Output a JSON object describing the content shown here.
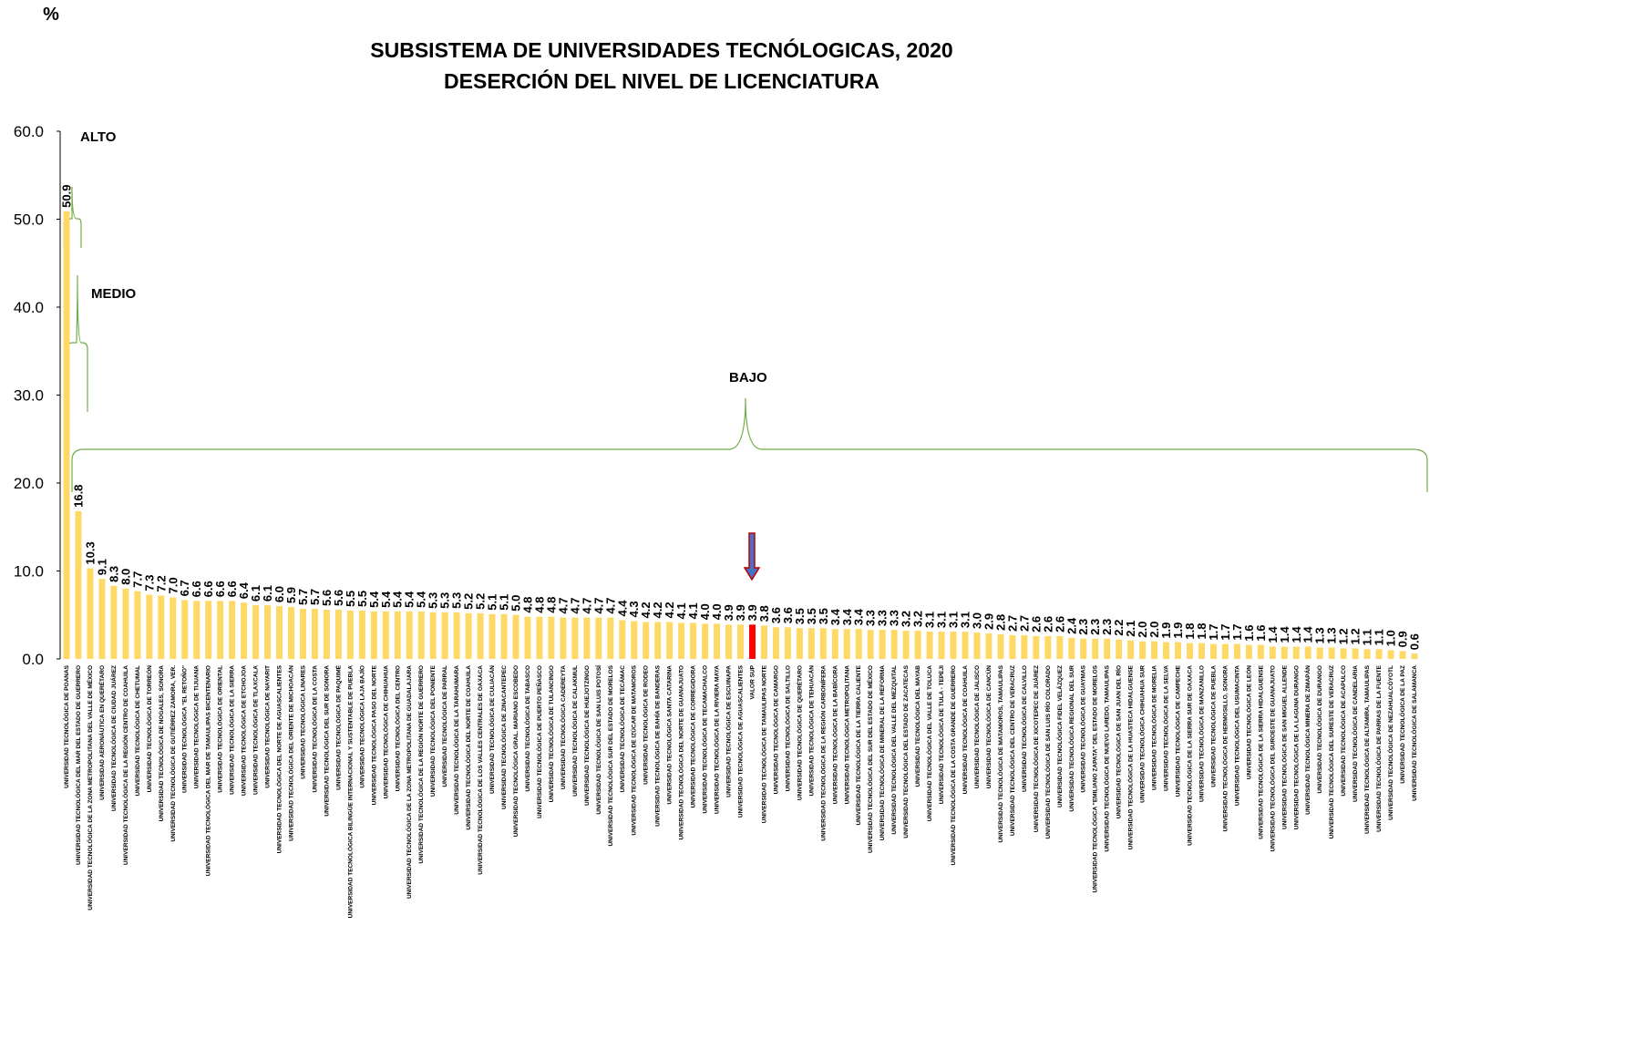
{
  "chart_data": {
    "type": "bar",
    "title": [
      "SUBSISTEMA DE UNIVERSIDADES TECNÓLOGICAS, 2020",
      "DESERCIÓN DEL NIVEL DE LICENCIATURA"
    ],
    "y_label": "%",
    "annotations": [
      "ALTO",
      "MEDIO",
      "BAJO"
    ],
    "color": "#ffd966",
    "highlight": {
      "index": 58,
      "color": "#ff0000"
    },
    "ylim": [
      0,
      60
    ],
    "yticks": [
      {
        "value": 0,
        "label": "0.0"
      },
      {
        "value": 10,
        "label": "10.0"
      },
      {
        "value": 20,
        "label": "20.0"
      },
      {
        "value": 30,
        "label": "30.0"
      },
      {
        "value": 40,
        "label": "40.0"
      },
      {
        "value": 50,
        "label": "50.0"
      },
      {
        "value": 60,
        "label": "60.0"
      }
    ],
    "categories": [
      "UNIVERSIDAD TECNOLÓGICA DE POANAS",
      "UNIVERSIDAD TECNOLÓGICA DEL MAR DEL ESTADO DE GUERRERO",
      "UNIVERSIDAD TECNOLÓGICA DE LA ZONA METROPOLITANA DEL VALLE DE MÉXICO",
      "UNIVERSIDAD AERONÁUTICA EN QUERÉTARO",
      "UNIVERSIDAD TECNOLÓGICA DE CIUDAD JUÁREZ",
      "UNIVERSIDAD TECNOLÓGICA DE LA REGIÓN CENTRO DE COAHUILA",
      "UNIVERSIDAD TECNOLÓGICA DE CHETUMAL",
      "UNIVERSIDAD TECNOLÓGICA DE TORREÓN",
      "UNIVERSIDAD TECNOLÓGICA DE NOGALES, SONORA",
      "UNIVERSIDAD TECNOLÓGICA DE GUTIÉRREZ ZAMORA, VER.",
      "UNIVERSIDAD TECNOLÓGICA \"EL RETOÑO\"",
      "UNIVERSIDAD TECNOLÓGICA DE TIJUANA",
      "UNIVERSIDAD TECNOLÓGICA DEL MAR DE TAMAULIPAS BICENTENARIO",
      "UNIVERSIDAD TECNOLÓGICA DE ORIENTAL",
      "UNIVERSIDAD TECNOLÓGICA DE LA SIERRA",
      "UNIVERSIDAD TECNOLÓGICA DE ETCHOJOA",
      "UNIVERSIDAD TECNOLÓGICA DE TLAXCALA",
      "UNIVERSIDAD TECNOLÓGICA DE NAYARIT",
      "UNIVERSIDAD TECNOLÓGICA DEL NORTE DE AGUASCALIENTES",
      "UNIVERSIDAD TECNOLÓGICA DEL ORIENTE DE MICHOACÁN",
      "UNIVERSIDAD TECNOLÓGICA LINARES",
      "UNIVERSIDAD TECNOLÓGICA DE LA COSTA",
      "UNIVERSIDAD TECNOLÓGICA DEL SUR DE SONORA",
      "UNIVERSIDAD TECNOLÓGICA DE PAQUIMÉ",
      "UNIVERSIDAD TECNOLÓGICA BILINGÜE INTERNACIONAL Y SUSTENTABLE DE PUEBLA",
      "UNIVERSIDAD TECNOLÓGICA LAJA BAJÍO",
      "UNIVERSIDAD TECNOLÓGICA PASO DEL NORTE",
      "UNIVERSIDAD TECNOLÓGICA DE CHIHUAHUA",
      "UNIVERSIDAD TECNOLÓGICA DEL CENTRO",
      "UNIVERSIDAD TECNOLÓGICA DE LA ZONA METROPOLITANA DE GUADALAJARA",
      "UNIVERSIDAD TECNOLÓGICA DE LA REGIÓN NORTE DE GUERRERO",
      "UNIVERSIDAD TECNOLÓGICA DEL PONIENTE",
      "UNIVERSIDAD TECNOLÓGICA DE PARRAL",
      "UNIVERSIDAD TECNOLÓGICA DE LA TARAHUMARA",
      "UNIVERSIDAD TECNOLÓGICA DEL NORTE DE COAHUILA",
      "UNIVERSIDAD TECNOLÓGICA DE LOS VALLES CENTRALES DE OAXACA",
      "UNIVERSIDAD TECNOLÓGICA DE CULIACÁN",
      "UNIVERSIDAD TECNOLÓGICA DE ZINACANTEPEC",
      "UNIVERSIDAD TECNOLÓGICA GRAL. MARIANO ESCOBEDO",
      "UNIVERSIDAD TECNOLÓGICA DE TABASCO",
      "UNIVERSIDAD TECNOLÓGICA DE PUERTO PEÑASCO",
      "UNIVERSIDAD TECNOLÓGICA DE TULANCINGO",
      "UNIVERSIDAD TECNOLÓGICA CADEREYTA",
      "UNIVERSIDAD TECNOLÓGICA DE CALAKMUL",
      "UNIVERSIDAD TECNOLÓGICA DE HUEJOTZINGO",
      "UNIVERSIDAD TECNOLÓGICA DE SAN LUIS POTOSÍ",
      "UNIVERSIDAD TECNOLÓGICA SUR DEL ESTADO DE MORELOS",
      "UNIVERSIDAD TECNOLÓGICA DE TECÁMAC",
      "UNIVERSIDAD TECNOLÓGICA DE IZÚCAR DE MATAMOROS",
      "UNIVERSIDAD TECNOLÓGICA DE RODEO",
      "UNIVERSIDAD TECNOLÓGICA DE BAHÍA DE BANDERAS",
      "UNIVERSIDAD TECNOLÓGICA SANTA CATARINA",
      "UNIVERSIDAD TECNOLÓGICA DEL NORTE DE GUANAJUATO",
      "UNIVERSIDAD TECNOLÓGICA DE CORREGIDORA",
      "UNIVERSIDAD TECNOLÓGICA DE TECAMACHALCO",
      "UNIVERSIDAD TECNOLÓGICA DE LA RIVIERA MAYA",
      "UNIVERSIDAD TECNOLÓGICA DE ESCUINAPA",
      "UNIVERSIDAD TECNOLÓGICA DE AGUASCALIENTES",
      "VALOR SUP",
      "UNIVERSIDAD TECNOLÓGICA DE TAMAULIPAS NORTE",
      "UNIVERSIDAD TECNOLÓGICA DE CAMARGO",
      "UNIVERSIDAD TECNOLÓGICA DE SALTILLO",
      "UNIVERSIDAD TECNOLÓGICA DE QUERÉTARO",
      "UNIVERSIDAD TECNOLÓGICA DE TEHUACÁN",
      "UNIVERSIDAD TECNOLÓGICA DE LA REGIÓN CARBONÍFERA",
      "UNIVERSIDAD TECNOLÓGICA DE LA BABÍCORA",
      "UNIVERSIDAD TECNOLÓGICA METROPOLITANA",
      "UNIVERSIDAD TECNOLÓGICA DE LA TIERRA CALIENTE",
      "UNIVERSIDAD TECNOLÓGICA DEL SUR DEL ESTADO DE MÉXICO",
      "UNIVERSIDAD TECNOLÓGICA DE MINERAL DE LA REFORMA",
      "UNIVERSIDAD TECNOLÓGICA DEL VALLE DEL MEZQUITAL",
      "UNIVERSIDAD TECNOLÓGICA DEL ESTADO DE ZACATECAS",
      "UNIVERSIDAD TECNOLÓGICA DEL MAYAB",
      "UNIVERSIDAD TECNOLÓGICA DEL VALLE DE TOLUCA",
      "UNIVERSIDAD TECNOLÓGICA DE TULA - TEPEJI",
      "UNIVERSIDAD TECNOLÓGICA DE LA COSTA GRANDE DE GUERRERO",
      "UNIVERSIDAD TECNOLÓGICA DE COAHUILA",
      "UNIVERSIDAD TECNOLÓGICA DE JALISCO",
      "UNIVERSIDAD TECNOLÓGICA DE CANCÚN",
      "UNIVERSIDAD TECNOLÓGICA DE MATAMOROS, TAMAULIPAS",
      "UNIVERSIDAD TECNOLÓGICA DEL CENTRO DE VERACRUZ",
      "UNIVERSIDAD TECNOLÓGICA DE CALVILLO",
      "UNIVERSIDAD TECNOLÓGICA DE XICOTEPEC DE JUÁREZ",
      "UNIVERSIDAD TECNOLÓGICA DE SAN LUIS RÍO COLORADO",
      "UNIVERSIDAD TECNOLÓGICA FIDEL VELÁZQUEZ",
      "UNIVERSIDAD TECNOLÓGICA REGIONAL DEL SUR",
      "UNIVERSIDAD TECNOLÓGICA DE GUAYMAS",
      "UNIVERSIDAD TECNOLÓGICA \"EMILIANO ZAPATA\" DEL ESTADO DE MORELOS",
      "UNIVERSIDAD TECNOLÓGICA DE NUEVO LAREDO, TAMAULIPAS",
      "UNIVERSIDAD TECNOLÓGICA DE SAN JUAN DEL RÍO",
      "UNIVERSIDAD TECNOLÓGICA DE LA HUASTECA HIDALGUENSE",
      "UNIVERSIDAD TECNOLÓGICA CHIHUAHUA SUR",
      "UNIVERSIDAD TECNOLÓGICA DE MORELIA",
      "UNIVERSIDAD TECNOLÓGICA DE LA SELVA",
      "UNIVERSIDAD TECNOLÓGICA DE CAMPECHE",
      "UNIVERSIDAD TECNOLÓGICA DE LA SIERRA SUR DE OAXACA",
      "UNIVERSIDAD TECNOLÓGICA DE MANZANILLO",
      "UNIVERSIDAD TECNOLÓGICA DE PUEBLA",
      "UNIVERSIDAD TECNOLÓGICA DE HERMOSILLO, SONORA",
      "UNIVERSIDAD TECNOLÓGICA DEL USUMACINTA",
      "UNIVERSIDAD TECNOLÓGICA DE LEÓN",
      "UNIVERSIDAD TECNOLÓGICA DE LA SIERRA HIDALGUENSE",
      "UNIVERSIDAD TECNOLÓGICA DEL SUROESTE DE GUANAJUATO",
      "UNIVERSIDAD TECNOLÓGICA DE SAN MIGUEL ALLENDE",
      "UNIVERSIDAD TECNOLÓGICA DE LA LAGUNA DURANGO",
      "UNIVERSIDAD TECNOLÓGICA MINERA DE ZIMAPÁN",
      "UNIVERSIDAD TECNOLÓGICA DE DURANGO",
      "UNIVERSIDAD TECNOLÓGICA DEL SURESTE DE VERACRUZ",
      "UNIVERSIDAD TECNOLÓGICA DE ACAPULCO",
      "UNIVERSIDAD TECNOLÓGICA DE CANDELARIA",
      "UNIVERSIDAD TECNOLÓGICA DE ALTAMIRA, TAMAULIPAS",
      "UNIVERSIDAD TECNOLÓGICA DE PARRAS DE LA FUENTE",
      "UNIVERSIDAD TECNOLÓGICA DE NEZAHUALCÓYOTL",
      "UNIVERSIDAD TECNOLÓGICA DE LA PAZ",
      "UNIVERSIDAD TECNOLÓGICA DE SALAMANCA"
    ],
    "values": [
      50.9,
      16.8,
      10.3,
      9.1,
      8.3,
      8.0,
      7.7,
      7.3,
      7.2,
      7.0,
      6.7,
      6.6,
      6.6,
      6.6,
      6.6,
      6.4,
      6.1,
      6.1,
      6.0,
      5.9,
      5.7,
      5.7,
      5.6,
      5.6,
      5.5,
      5.5,
      5.4,
      5.4,
      5.4,
      5.4,
      5.4,
      5.3,
      5.3,
      5.3,
      5.2,
      5.2,
      5.1,
      5.1,
      5.0,
      4.8,
      4.8,
      4.8,
      4.7,
      4.7,
      4.7,
      4.7,
      4.7,
      4.4,
      4.3,
      4.2,
      4.2,
      4.2,
      4.1,
      4.1,
      4.0,
      4.0,
      3.9,
      3.9,
      3.9,
      3.8,
      3.6,
      3.6,
      3.5,
      3.5,
      3.5,
      3.4,
      3.4,
      3.4,
      3.3,
      3.3,
      3.3,
      3.2,
      3.2,
      3.1,
      3.1,
      3.1,
      3.1,
      3.0,
      2.9,
      2.8,
      2.7,
      2.7,
      2.6,
      2.6,
      2.6,
      2.4,
      2.3,
      2.3,
      2.3,
      2.2,
      2.1,
      2.0,
      2.0,
      1.9,
      1.9,
      1.8,
      1.8,
      1.7,
      1.7,
      1.7,
      1.6,
      1.6,
      1.4,
      1.4,
      1.4,
      1.4,
      1.3,
      1.3,
      1.2,
      1.2,
      1.1,
      1.1,
      1.0,
      0.9,
      0.6
    ],
    "value_labels": [
      "50.9",
      "16.8",
      "10.3",
      "9.1",
      "8.3",
      "8.0",
      "7.7",
      "7.3",
      "7.2",
      "7.0",
      "6.7",
      "6.6",
      "6.6",
      "6.6",
      "6.6",
      "6.4",
      "6.1",
      "6.1",
      "6.0",
      "5.9",
      "5.7",
      "5.7",
      "5.6",
      "5.6",
      "5.5",
      "5.5",
      "5.4",
      "5.4",
      "5.4",
      "5.4",
      "5.4",
      "5.3",
      "5.3",
      "5.3",
      "5.2",
      "5.2",
      "5.1",
      "5.1",
      "5.0",
      "4.8",
      "4.8",
      "4.8",
      "4.7",
      "4.7",
      "4.7",
      "4.7",
      "4.7",
      "4.4",
      "4.3",
      "4.2",
      "4.2",
      "4.2",
      "4.1",
      "4.1",
      "4.0",
      "4.0",
      "3.9",
      "3.9",
      "3.9",
      "3.8",
      "3.6",
      "3.6",
      "3.5",
      "3.5",
      "3.5",
      "3.4",
      "3.4",
      "3.4",
      "3.3",
      "3.3",
      "3.3",
      "3.2",
      "3.2",
      "3.1",
      "3.1",
      "3.1",
      "3.1",
      "3.0",
      "2.9",
      "2.8",
      "2.7",
      "2.7",
      "2.6",
      "2.6",
      "2.6",
      "2.4",
      "2.3",
      "2.3",
      "2.3",
      "2.2",
      "2.1",
      "2.0",
      "2.0",
      "1.9",
      "1.9",
      "1.8",
      "1.8",
      "1.7",
      "1.7",
      "1.7",
      "1.6",
      "1.6",
      "1.4",
      "1.4",
      "1.4",
      "1.4",
      "1.3",
      "1.3",
      "1.2",
      "1.2",
      "1.1",
      "1.1",
      "1.0",
      "0.9",
      "0.6"
    ]
  }
}
